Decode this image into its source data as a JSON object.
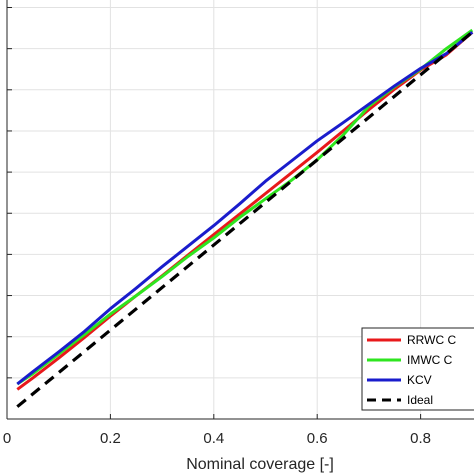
{
  "chart_data": {
    "type": "line",
    "xlabel": "Nominal coverage [-]",
    "ylabel": "",
    "xlim": [
      0,
      0.9
    ],
    "ylim": [
      0,
      1.0
    ],
    "xticks": [
      0,
      0.2,
      0.4,
      0.6,
      0.8
    ],
    "xtick_labels": [
      "0",
      "0.2",
      "0.4",
      "0.6",
      "0.8"
    ],
    "grid": true,
    "legend_position": "bottom-right",
    "series": [
      {
        "name": "RRWC C",
        "color": "#e8191b",
        "style": "solid",
        "x": [
          0.02,
          0.05,
          0.1,
          0.15,
          0.2,
          0.25,
          0.3,
          0.35,
          0.4,
          0.45,
          0.5,
          0.55,
          0.6,
          0.65,
          0.7,
          0.75,
          0.8,
          0.85,
          0.9
        ],
        "y": [
          0.072,
          0.1,
          0.148,
          0.198,
          0.25,
          0.3,
          0.348,
          0.398,
          0.448,
          0.498,
          0.548,
          0.598,
          0.648,
          0.7,
          0.752,
          0.802,
          0.848,
          0.885,
          0.94
        ]
      },
      {
        "name": "IMWC C",
        "color": "#2ee51f",
        "style": "solid",
        "x": [
          0.02,
          0.05,
          0.1,
          0.15,
          0.2,
          0.25,
          0.3,
          0.35,
          0.4,
          0.45,
          0.5,
          0.55,
          0.6,
          0.65,
          0.7,
          0.75,
          0.8,
          0.85,
          0.9
        ],
        "y": [
          0.085,
          0.11,
          0.158,
          0.205,
          0.255,
          0.3,
          0.346,
          0.395,
          0.44,
          0.49,
          0.535,
          0.58,
          0.63,
          0.69,
          0.76,
          0.808,
          0.85,
          0.9,
          0.945
        ]
      },
      {
        "name": "KCV",
        "color": "#1a1ccc",
        "style": "solid",
        "x": [
          0.02,
          0.05,
          0.1,
          0.15,
          0.2,
          0.25,
          0.3,
          0.35,
          0.4,
          0.45,
          0.5,
          0.55,
          0.6,
          0.65,
          0.7,
          0.75,
          0.8,
          0.85,
          0.9
        ],
        "y": [
          0.085,
          0.115,
          0.163,
          0.213,
          0.268,
          0.318,
          0.37,
          0.42,
          0.47,
          0.523,
          0.578,
          0.627,
          0.676,
          0.72,
          0.765,
          0.81,
          0.852,
          0.888,
          0.94
        ]
      },
      {
        "name": "Ideal",
        "color": "#000000",
        "style": "dashed",
        "x": [
          0.02,
          0.9
        ],
        "y": [
          0.03,
          0.94
        ]
      }
    ]
  }
}
